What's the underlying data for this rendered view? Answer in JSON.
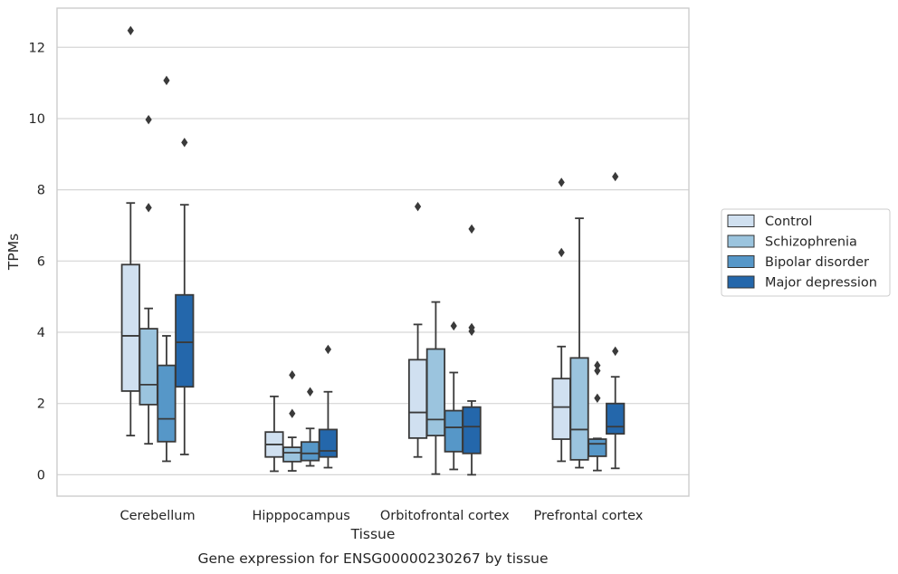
{
  "chart_data": {
    "type": "box",
    "caption": "Gene expression for ENSG00000230267 by tissue",
    "xlabel": "Tissue",
    "ylabel": "TPMs",
    "ylim": [
      -0.6,
      13.1
    ],
    "yticks": [
      0,
      2,
      4,
      6,
      8,
      10,
      12
    ],
    "grid": "horizontal",
    "legend_position": "right",
    "categories": [
      "Cerebellum",
      "Hipppocampus",
      "Orbitofrontal cortex",
      "Prefrontal cortex"
    ],
    "series": [
      {
        "name": "Control",
        "color": "#d0e0f0",
        "boxes": [
          {
            "whisker_low": 1.1,
            "q1": 2.35,
            "median": 3.9,
            "q3": 5.9,
            "whisker_high": 7.63,
            "outliers": [
              12.47
            ]
          },
          {
            "whisker_low": 0.1,
            "q1": 0.5,
            "median": 0.85,
            "q3": 1.2,
            "whisker_high": 2.2,
            "outliers": []
          },
          {
            "whisker_low": 0.5,
            "q1": 1.03,
            "median": 1.75,
            "q3": 3.23,
            "whisker_high": 4.22,
            "outliers": [
              7.53
            ]
          },
          {
            "whisker_low": 0.38,
            "q1": 1.0,
            "median": 1.9,
            "q3": 2.7,
            "whisker_high": 3.6,
            "outliers": [
              6.24,
              8.21
            ]
          }
        ]
      },
      {
        "name": "Schizophrenia",
        "color": "#9bc4de",
        "boxes": [
          {
            "whisker_low": 0.87,
            "q1": 1.97,
            "median": 2.53,
            "q3": 4.1,
            "whisker_high": 4.67,
            "outliers": [
              7.5,
              9.97
            ]
          },
          {
            "whisker_low": 0.11,
            "q1": 0.37,
            "median": 0.62,
            "q3": 0.77,
            "whisker_high": 1.05,
            "outliers": [
              1.72,
              2.8
            ]
          },
          {
            "whisker_low": 0.02,
            "q1": 1.1,
            "median": 1.55,
            "q3": 3.53,
            "whisker_high": 4.85,
            "outliers": []
          },
          {
            "whisker_low": 0.2,
            "q1": 0.42,
            "median": 1.27,
            "q3": 3.28,
            "whisker_high": 7.2,
            "outliers": []
          }
        ]
      },
      {
        "name": "Bipolar disorder",
        "color": "#5697c8",
        "boxes": [
          {
            "whisker_low": 0.38,
            "q1": 0.93,
            "median": 1.57,
            "q3": 3.07,
            "whisker_high": 3.9,
            "outliers": [
              11.07
            ]
          },
          {
            "whisker_low": 0.25,
            "q1": 0.4,
            "median": 0.6,
            "q3": 0.92,
            "whisker_high": 1.3,
            "outliers": [
              2.33
            ]
          },
          {
            "whisker_low": 0.15,
            "q1": 0.65,
            "median": 1.33,
            "q3": 1.8,
            "whisker_high": 2.87,
            "outliers": [
              4.18
            ]
          },
          {
            "whisker_low": 0.12,
            "q1": 0.52,
            "median": 0.87,
            "q3": 1.0,
            "whisker_high": 1.02,
            "outliers": [
              2.15,
              2.92,
              3.07
            ]
          }
        ]
      },
      {
        "name": "Major depression",
        "color": "#2467ab",
        "boxes": [
          {
            "whisker_low": 0.57,
            "q1": 2.47,
            "median": 3.72,
            "q3": 5.05,
            "whisker_high": 7.58,
            "outliers": [
              9.33
            ]
          },
          {
            "whisker_low": 0.2,
            "q1": 0.5,
            "median": 0.67,
            "q3": 1.27,
            "whisker_high": 2.33,
            "outliers": [
              3.52
            ]
          },
          {
            "whisker_low": 0.0,
            "q1": 0.6,
            "median": 1.35,
            "q3": 1.9,
            "whisker_high": 2.07,
            "outliers": [
              4.03,
              4.13,
              6.9
            ]
          },
          {
            "whisker_low": 0.18,
            "q1": 1.15,
            "median": 1.35,
            "q3": 2.0,
            "whisker_high": 2.75,
            "outliers": [
              3.47,
              8.37
            ]
          }
        ]
      }
    ]
  }
}
